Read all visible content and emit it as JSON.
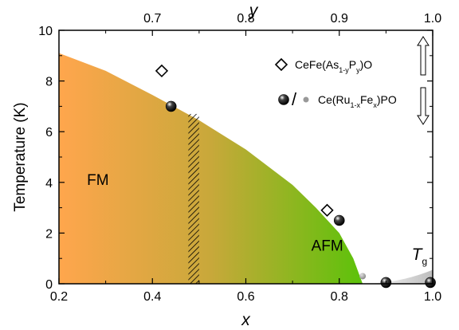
{
  "chart_data": {
    "type": "scatter",
    "title": "",
    "xlabel": "x",
    "x2label": "y",
    "ylabel": "Temperature (K)",
    "xlim": [
      0.2,
      1.0
    ],
    "x2lim": [
      0.6,
      1.0
    ],
    "ylim": [
      0,
      10
    ],
    "x_ticks": [
      "0.2",
      "0.4",
      "0.6",
      "0.8",
      "1.0"
    ],
    "x2_ticks": [
      "0.7",
      "0.8",
      "0.9",
      "1.0"
    ],
    "y_ticks": [
      "0",
      "2",
      "4",
      "6",
      "8",
      "10"
    ],
    "regions": [
      {
        "label": "FM",
        "x": 0.26,
        "y": 3.9
      },
      {
        "label": "AFM",
        "x": 0.74,
        "y": 1.3
      },
      {
        "label_main": "T",
        "label_sub": "g",
        "x": 0.955,
        "y": 0.95
      }
    ],
    "phase_boundary": {
      "x": [
        0.2,
        0.3,
        0.4,
        0.5,
        0.6,
        0.7,
        0.75,
        0.8,
        0.83,
        0.85
      ],
      "y": [
        9.1,
        8.4,
        7.45,
        6.45,
        5.3,
        3.9,
        3.0,
        2.0,
        1.0,
        0.0
      ]
    },
    "hatched_band": {
      "x": [
        0.477,
        0.5
      ]
    },
    "series": [
      {
        "name": "CeFe(As1-yPy)O",
        "name_parts": [
          {
            "text": "CeFe(As",
            "sub": false
          },
          {
            "text": "1-y",
            "sub": true
          },
          {
            "text": "P",
            "sub": false
          },
          {
            "text": "y",
            "sub": true
          },
          {
            "text": ")O",
            "sub": false
          }
        ],
        "axis": "top",
        "marker": "diamond",
        "arrow": "up",
        "points": [
          {
            "y_param": 0.71,
            "T": 8.4
          },
          {
            "y_param": 0.887,
            "T": 2.9
          }
        ]
      },
      {
        "name": "Ce(Ru1-xFex)PO",
        "name_parts": [
          {
            "text": "Ce(Ru",
            "sub": false
          },
          {
            "text": "1-x",
            "sub": true
          },
          {
            "text": "Fe",
            "sub": false
          },
          {
            "text": "x",
            "sub": true
          },
          {
            "text": ")PO",
            "sub": false
          }
        ],
        "axis": "bottom",
        "marker": "ball",
        "arrow": "down",
        "points": [
          {
            "x": 0.44,
            "T": 7.0
          },
          {
            "x": 0.8,
            "T": 2.5
          },
          {
            "x": 0.9,
            "T": 0.05
          },
          {
            "x": 0.995,
            "T": 0.05
          }
        ],
        "gray_points": [
          {
            "x": 0.85,
            "T": 0.3
          }
        ]
      }
    ],
    "legend_placement": "top-right",
    "legend_separator": "/"
  }
}
